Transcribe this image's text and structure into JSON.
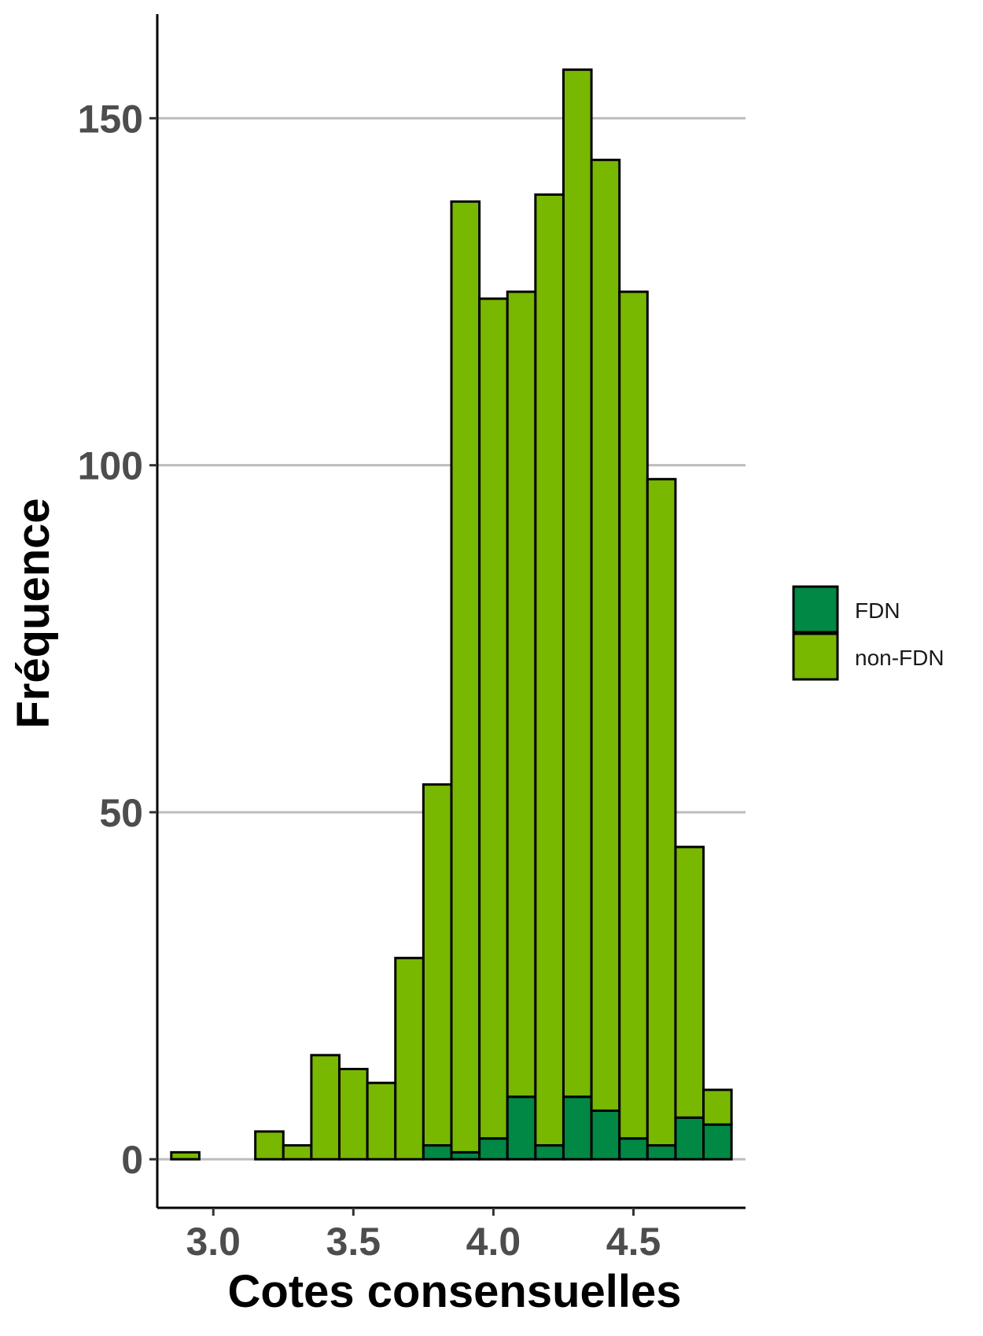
{
  "chart_data": {
    "type": "bar",
    "stacked": true,
    "xlabel": "Cotes consensuelles",
    "ylabel": "Fréquence",
    "xlim": [
      2.8,
      4.9
    ],
    "ylim": [
      -7,
      165
    ],
    "bin_width": 0.1,
    "x_ticks": [
      {
        "value": 3.0,
        "label": "3.0"
      },
      {
        "value": 3.5,
        "label": "3.5"
      },
      {
        "value": 4.0,
        "label": "4.0"
      },
      {
        "value": 4.5,
        "label": "4.5"
      }
    ],
    "y_ticks": [
      {
        "value": 0,
        "label": "0"
      },
      {
        "value": 50,
        "label": "50"
      },
      {
        "value": 100,
        "label": "100"
      },
      {
        "value": 150,
        "label": "150"
      }
    ],
    "grid": "horizontal major lines",
    "legend_position": "right",
    "bin_centers": [
      2.9,
      3.0,
      3.1,
      3.2,
      3.3,
      3.4,
      3.5,
      3.6,
      3.7,
      3.8,
      3.9,
      4.0,
      4.1,
      4.2,
      4.3,
      4.4,
      4.5,
      4.6,
      4.7,
      4.8
    ],
    "series": [
      {
        "name": "FDN",
        "color": "#008844",
        "values": [
          0,
          0,
          0,
          0,
          0,
          0,
          0,
          0,
          0,
          2,
          1,
          3,
          9,
          2,
          9,
          7,
          3,
          2,
          6,
          5
        ]
      },
      {
        "name": "non-FDN",
        "color": "#78b800",
        "values": [
          1,
          0,
          0,
          4,
          2,
          15,
          13,
          11,
          29,
          52,
          137,
          121,
          116,
          137,
          148,
          137,
          122,
          96,
          39,
          5
        ]
      }
    ]
  }
}
